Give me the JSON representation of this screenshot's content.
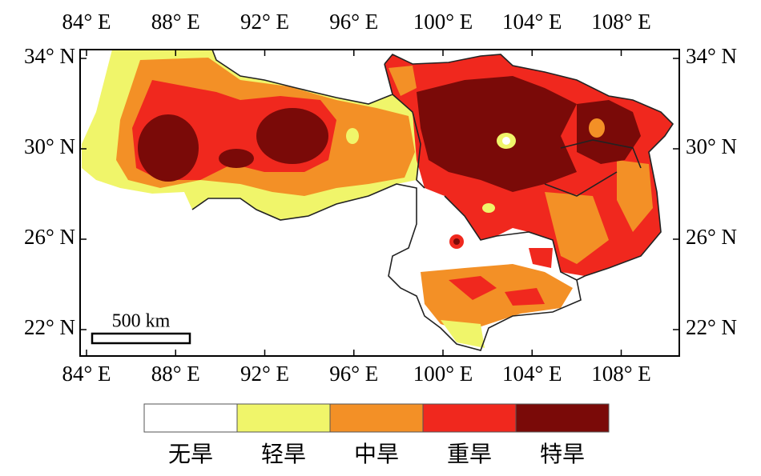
{
  "map": {
    "xticks": [
      {
        "value": 84,
        "label": "84° E"
      },
      {
        "value": 88,
        "label": "88° E"
      },
      {
        "value": 92,
        "label": "92° E"
      },
      {
        "value": 96,
        "label": "96° E"
      },
      {
        "value": 100,
        "label": "100° E"
      },
      {
        "value": 104,
        "label": "104° E"
      },
      {
        "value": 108,
        "label": "108° E"
      }
    ],
    "yticks": [
      {
        "value": 34,
        "label": "34° N"
      },
      {
        "value": 30,
        "label": "30° N"
      },
      {
        "value": 26,
        "label": "26° N"
      },
      {
        "value": 22,
        "label": "22° N"
      }
    ],
    "scale_bar": "500 km"
  },
  "legend": {
    "items": [
      {
        "label": "无旱",
        "color": "#ffffff"
      },
      {
        "label": "轻旱",
        "color": "#f0f56a"
      },
      {
        "label": "中旱",
        "color": "#f39026"
      },
      {
        "label": "重旱",
        "color": "#f0281e"
      },
      {
        "label": "特旱",
        "color": "#7a0a08"
      }
    ]
  }
}
